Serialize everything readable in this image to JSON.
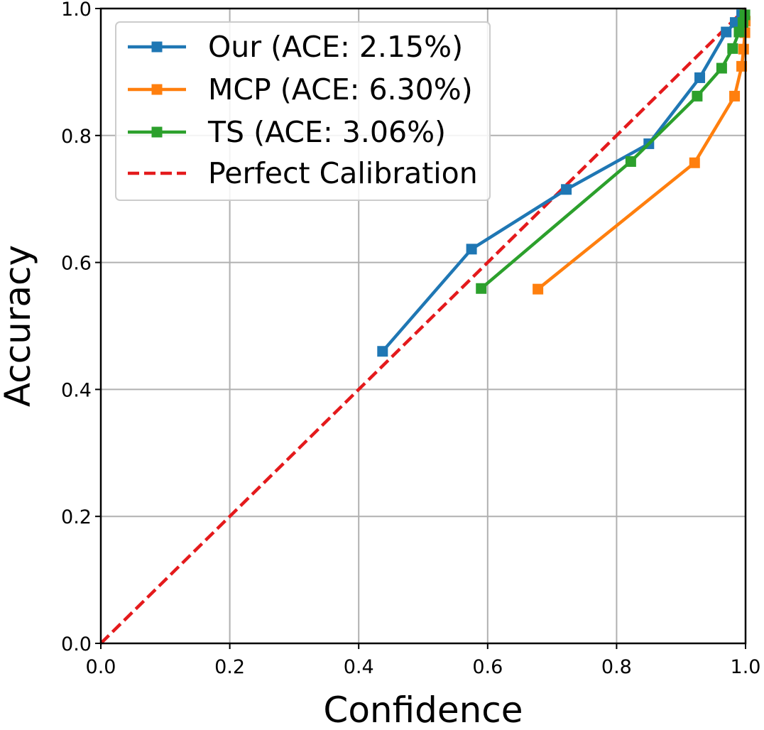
{
  "chart_data": {
    "type": "line",
    "xlabel": "Confidence",
    "ylabel": "Accuracy",
    "xlim": [
      0.0,
      1.0
    ],
    "ylim": [
      0.0,
      1.0
    ],
    "x_ticks": [
      "0.0",
      "0.2",
      "0.4",
      "0.6",
      "0.8",
      "1.0"
    ],
    "y_ticks": [
      "0.0",
      "0.2",
      "0.4",
      "0.6",
      "0.8",
      "1.0"
    ],
    "grid": true,
    "legend_position": "top-left",
    "series": [
      {
        "name": "Our (ACE: 2.15%)",
        "color": "#1f77b4",
        "marker": "square",
        "points": [
          [
            0.437,
            0.46
          ],
          [
            0.575,
            0.621
          ],
          [
            0.722,
            0.715
          ],
          [
            0.85,
            0.787
          ],
          [
            0.929,
            0.891
          ],
          [
            0.97,
            0.963
          ],
          [
            0.984,
            0.978
          ],
          [
            0.994,
            0.99
          ]
        ]
      },
      {
        "name": "MCP (ACE: 6.30%)",
        "color": "#ff7f0e",
        "marker": "square",
        "points": [
          [
            0.678,
            0.558
          ],
          [
            0.921,
            0.757
          ],
          [
            0.983,
            0.862
          ],
          [
            0.994,
            0.909
          ],
          [
            0.997,
            0.936
          ],
          [
            0.999,
            0.962
          ],
          [
            0.9995,
            0.98
          ]
        ]
      },
      {
        "name": "TS (ACE: 3.06%)",
        "color": "#2ca02c",
        "marker": "square",
        "points": [
          [
            0.59,
            0.559
          ],
          [
            0.822,
            0.759
          ],
          [
            0.925,
            0.862
          ],
          [
            0.963,
            0.906
          ],
          [
            0.98,
            0.937
          ],
          [
            0.99,
            0.963
          ],
          [
            0.996,
            0.978
          ],
          [
            0.999,
            0.99
          ]
        ]
      },
      {
        "name": "Perfect Calibration",
        "color": "#e41a1c",
        "dashed": true,
        "points": [
          [
            0.0,
            0.0
          ],
          [
            1.0,
            1.0
          ]
        ]
      }
    ]
  }
}
